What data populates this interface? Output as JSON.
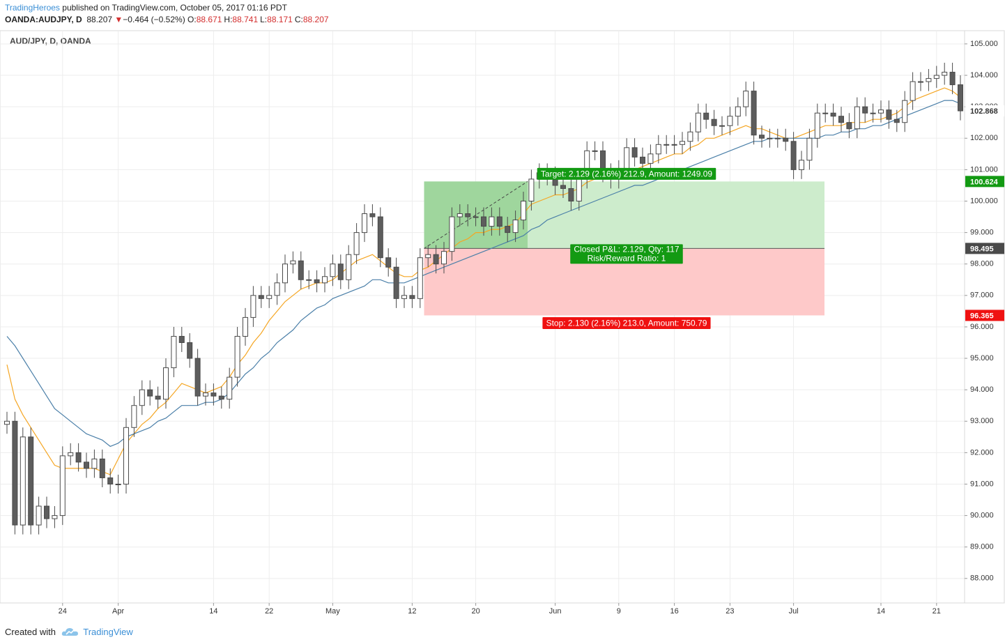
{
  "header": {
    "author": "TradingHeroes",
    "published": "published on TradingView.com, October 05, 2017 01:16 PDT",
    "symbol": "OANDA:AUDJPY, D",
    "price": 88.207,
    "arrow": "▼",
    "change": "−0.464 (−0.52%)",
    "ohlc": [
      {
        "label": "O:",
        "value": 88.671
      },
      {
        "label": "H:",
        "value": 88.741
      },
      {
        "label": "L:",
        "value": 88.171
      },
      {
        "label": "C:",
        "value": 88.207
      }
    ]
  },
  "chart_data": {
    "type": "candlestick",
    "title": "AUD/JPY, D, OANDA",
    "categories": [
      null,
      null,
      null,
      null,
      null,
      null,
      null,
      "24",
      null,
      null,
      null,
      null,
      null,
      null,
      "Apr",
      null,
      null,
      null,
      null,
      null,
      null,
      null,
      null,
      null,
      null,
      null,
      "14",
      null,
      null,
      null,
      null,
      null,
      null,
      "22",
      null,
      null,
      null,
      null,
      null,
      null,
      null,
      "May",
      null,
      null,
      null,
      null,
      null,
      null,
      null,
      null,
      null,
      "12",
      null,
      null,
      null,
      null,
      null,
      null,
      null,
      "20",
      null,
      null,
      null,
      null,
      null,
      null,
      null,
      null,
      null,
      "Jun",
      null,
      null,
      null,
      null,
      null,
      null,
      null,
      "9",
      null,
      null,
      null,
      null,
      null,
      null,
      "16",
      null,
      null,
      null,
      null,
      null,
      null,
      "23",
      null,
      null,
      null,
      null,
      null,
      null,
      null,
      "Jul",
      null,
      null,
      null,
      null,
      null,
      null,
      null,
      null,
      null,
      null,
      "14",
      null,
      null,
      null,
      null,
      null,
      null,
      "21",
      null,
      null,
      null
    ],
    "open": [
      92.9,
      93.0,
      89.7,
      92.5,
      89.7,
      90.3,
      89.9,
      90.0,
      91.9,
      92.0,
      91.7,
      91.5,
      91.8,
      91.2,
      91.0,
      91.0,
      92.8,
      93.5,
      94.0,
      93.8,
      93.7,
      94.7,
      95.7,
      95.5,
      95.0,
      93.8,
      93.9,
      93.8,
      93.7,
      94.4,
      95.7,
      96.3,
      97.0,
      96.9,
      97.0,
      97.4,
      98.0,
      98.1,
      97.5,
      97.5,
      97.4,
      97.6,
      98.0,
      97.5,
      98.3,
      99.0,
      99.6,
      99.5,
      98.2,
      97.9,
      96.9,
      97.0,
      96.9,
      98.2,
      98.3,
      98.0,
      98.4,
      99.5,
      99.6,
      99.5,
      99.5,
      99.2,
      99.5,
      99.2,
      99.0,
      99.4,
      100.0,
      100.7,
      100.9,
      100.8,
      100.5,
      100.4,
      100.0,
      100.7,
      101.6,
      101.6,
      100.9,
      100.7,
      101.0,
      101.7,
      101.4,
      101.2,
      101.5,
      101.8,
      101.8,
      101.8,
      101.9,
      102.2,
      102.8,
      102.6,
      102.4,
      102.4,
      102.7,
      103.0,
      103.5,
      102.1,
      102.0,
      102.0,
      102.0,
      101.9,
      101.0,
      101.3,
      102.0,
      102.8,
      102.8,
      102.7,
      102.5,
      102.3,
      103.0,
      102.8,
      102.8,
      102.9,
      102.6,
      102.5,
      103.2,
      103.8,
      103.8,
      103.9,
      104.0,
      104.1,
      103.7
    ],
    "high": [
      93.3,
      93.3,
      92.8,
      92.8,
      90.6,
      90.6,
      90.3,
      92.2,
      92.3,
      92.3,
      92.0,
      92.1,
      92.1,
      91.5,
      91.3,
      93.1,
      93.8,
      94.3,
      94.3,
      94.1,
      95.0,
      96.0,
      96.0,
      95.8,
      95.3,
      94.2,
      94.2,
      94.1,
      94.7,
      96.0,
      96.6,
      97.3,
      97.3,
      97.3,
      97.7,
      98.3,
      98.4,
      98.4,
      97.8,
      97.8,
      97.9,
      98.3,
      98.3,
      98.6,
      99.3,
      99.9,
      99.9,
      99.8,
      98.5,
      98.2,
      97.3,
      97.3,
      98.5,
      98.6,
      98.6,
      98.7,
      99.8,
      99.9,
      99.9,
      99.8,
      99.8,
      99.8,
      99.8,
      99.5,
      99.7,
      100.3,
      101.0,
      101.2,
      101.2,
      101.1,
      100.8,
      100.7,
      101.0,
      101.9,
      101.9,
      101.9,
      101.2,
      101.3,
      102.0,
      102.0,
      101.7,
      101.8,
      102.1,
      102.1,
      102.1,
      102.2,
      102.5,
      103.1,
      103.1,
      102.9,
      102.7,
      103.0,
      103.3,
      103.8,
      103.8,
      102.4,
      102.3,
      102.3,
      102.3,
      102.2,
      101.6,
      102.3,
      103.1,
      103.1,
      103.1,
      103.0,
      102.8,
      103.3,
      103.3,
      103.1,
      103.2,
      103.2,
      102.9,
      103.5,
      104.1,
      104.1,
      104.2,
      104.3,
      104.4,
      104.4,
      104.0
    ],
    "low": [
      92.6,
      89.4,
      89.4,
      89.4,
      89.4,
      89.6,
      89.6,
      89.7,
      91.6,
      91.4,
      91.2,
      91.2,
      90.9,
      90.7,
      90.7,
      90.7,
      92.5,
      93.2,
      93.5,
      93.4,
      93.4,
      94.4,
      95.2,
      94.7,
      93.5,
      93.5,
      93.5,
      93.4,
      93.4,
      94.1,
      95.4,
      96.0,
      96.6,
      96.6,
      96.7,
      97.1,
      97.7,
      97.2,
      97.2,
      97.1,
      97.1,
      97.3,
      97.2,
      97.2,
      98.0,
      98.7,
      99.2,
      97.9,
      97.6,
      96.6,
      96.6,
      96.6,
      96.6,
      97.9,
      97.7,
      97.7,
      98.1,
      99.2,
      99.2,
      99.2,
      98.9,
      98.9,
      98.9,
      98.7,
      98.7,
      99.1,
      99.7,
      100.4,
      100.5,
      100.2,
      100.1,
      99.7,
      99.7,
      100.4,
      101.3,
      100.6,
      100.4,
      100.4,
      100.7,
      101.1,
      100.9,
      100.9,
      101.2,
      101.5,
      101.5,
      101.5,
      101.6,
      101.9,
      102.3,
      102.1,
      102.1,
      102.1,
      102.4,
      102.7,
      101.8,
      101.7,
      101.7,
      101.7,
      101.6,
      100.7,
      100.7,
      101.0,
      101.7,
      102.5,
      102.4,
      102.2,
      102.0,
      102.0,
      102.5,
      102.5,
      102.5,
      102.3,
      102.2,
      102.2,
      102.9,
      103.5,
      103.5,
      103.6,
      103.7,
      103.4,
      102.57
    ],
    "close": [
      93.0,
      89.7,
      92.5,
      89.7,
      90.3,
      89.9,
      90.0,
      91.9,
      92.0,
      91.7,
      91.5,
      91.8,
      91.2,
      91.0,
      91.0,
      92.8,
      93.5,
      94.0,
      93.8,
      93.7,
      94.7,
      95.7,
      95.5,
      95.0,
      93.8,
      93.9,
      93.8,
      93.7,
      94.4,
      95.7,
      96.3,
      97.0,
      96.9,
      97.0,
      97.4,
      98.0,
      98.1,
      97.5,
      97.5,
      97.4,
      97.6,
      98.0,
      97.5,
      98.3,
      99.0,
      99.6,
      99.5,
      98.2,
      97.9,
      96.9,
      97.0,
      96.9,
      98.2,
      98.3,
      98.0,
      98.4,
      99.5,
      99.6,
      99.5,
      99.5,
      99.2,
      99.5,
      99.2,
      99.0,
      99.4,
      100.0,
      100.7,
      100.9,
      100.8,
      100.5,
      100.4,
      100.0,
      100.7,
      101.6,
      101.6,
      100.9,
      100.7,
      101.0,
      101.7,
      101.4,
      101.2,
      101.5,
      101.8,
      101.8,
      101.8,
      101.9,
      102.2,
      102.8,
      102.6,
      102.4,
      102.4,
      102.7,
      103.0,
      103.5,
      102.1,
      102.0,
      102.0,
      102.0,
      101.9,
      101.0,
      101.3,
      102.0,
      102.8,
      102.8,
      102.7,
      102.5,
      102.3,
      103.0,
      102.8,
      102.8,
      102.9,
      102.6,
      102.5,
      103.2,
      103.8,
      103.8,
      103.9,
      104.0,
      104.1,
      103.7,
      102.87
    ],
    "up_color": "#ffffff",
    "down_color": "#5d5d5d",
    "wick_color": "#4a4a4a",
    "moving_averages": [
      {
        "color": "#f5a623",
        "values": [
          94.8,
          93.7,
          93.2,
          92.8,
          92.4,
          92.0,
          91.6,
          91.5,
          91.5,
          91.5,
          91.5,
          91.5,
          91.4,
          91.3,
          91.8,
          92.3,
          92.6,
          92.9,
          93.1,
          93.4,
          93.6,
          93.9,
          94.2,
          94.1,
          94.0,
          93.9,
          94.0,
          94.1,
          94.4,
          94.8,
          95.1,
          95.5,
          95.8,
          96.2,
          96.5,
          96.8,
          97.0,
          97.2,
          97.3,
          97.4,
          97.4,
          97.5,
          97.7,
          97.9,
          98.1,
          98.2,
          98.3,
          98.1,
          97.9,
          97.7,
          97.6,
          97.6,
          97.8,
          97.9,
          98.1,
          98.3,
          98.5,
          98.7,
          98.8,
          99.0,
          99.0,
          99.1,
          99.1,
          99.2,
          99.3,
          99.6,
          99.9,
          100.0,
          100.1,
          100.2,
          100.2,
          100.3,
          100.4,
          100.6,
          100.7,
          100.8,
          100.8,
          100.9,
          100.9,
          101.0,
          101.1,
          101.2,
          101.3,
          101.4,
          101.5,
          101.5,
          101.7,
          101.8,
          102.0,
          102.0,
          102.1,
          102.2,
          102.3,
          102.4,
          102.3,
          102.3,
          102.2,
          102.1,
          102.0,
          102.0,
          102.1,
          102.2,
          102.3,
          102.4,
          102.4,
          102.4,
          102.5,
          102.5,
          102.5,
          102.6,
          102.6,
          102.7,
          102.8,
          103.0,
          103.2,
          103.3,
          103.4,
          103.5,
          103.6,
          103.5,
          103.3
        ]
      },
      {
        "color": "#4a7fa8",
        "values": [
          95.7,
          95.4,
          95.0,
          94.6,
          94.2,
          93.8,
          93.4,
          93.2,
          93.0,
          92.8,
          92.6,
          92.5,
          92.4,
          92.2,
          92.3,
          92.5,
          92.6,
          92.7,
          92.8,
          93.0,
          93.1,
          93.3,
          93.5,
          93.5,
          93.5,
          93.6,
          93.6,
          93.7,
          93.9,
          94.2,
          94.5,
          94.7,
          95.0,
          95.2,
          95.5,
          95.7,
          95.9,
          96.2,
          96.4,
          96.6,
          96.7,
          96.9,
          97.0,
          97.1,
          97.2,
          97.3,
          97.5,
          97.5,
          97.4,
          97.4,
          97.4,
          97.5,
          97.6,
          97.7,
          97.8,
          97.9,
          98.0,
          98.1,
          98.2,
          98.3,
          98.4,
          98.5,
          98.6,
          98.7,
          98.8,
          98.9,
          99.1,
          99.2,
          99.4,
          99.5,
          99.6,
          99.7,
          99.8,
          99.9,
          100.0,
          100.1,
          100.2,
          100.3,
          100.4,
          100.5,
          100.5,
          100.6,
          100.7,
          100.8,
          100.9,
          101.0,
          101.1,
          101.2,
          101.3,
          101.4,
          101.5,
          101.6,
          101.7,
          101.8,
          101.9,
          101.9,
          102.0,
          102.0,
          102.0,
          102.0,
          102.0,
          102.0,
          102.0,
          102.1,
          102.1,
          102.2,
          102.2,
          102.3,
          102.3,
          102.4,
          102.4,
          102.5,
          102.6,
          102.7,
          102.8,
          102.9,
          103.0,
          103.1,
          103.2,
          103.2,
          103.1
        ]
      }
    ],
    "ylim": [
      87.22,
      105.42
    ],
    "yticks": [
      {
        "value": 88,
        "label": "88.000"
      },
      {
        "value": 89,
        "label": "89.000"
      },
      {
        "value": 90,
        "label": "90.000"
      },
      {
        "value": 91,
        "label": "91.000"
      },
      {
        "value": 92,
        "label": "92.000"
      },
      {
        "value": 93,
        "label": "93.000"
      },
      {
        "value": 94,
        "label": "94.000"
      },
      {
        "value": 95,
        "label": "95.000"
      },
      {
        "value": 96,
        "label": "96.000"
      },
      {
        "value": 97,
        "label": "97.000"
      },
      {
        "value": 98,
        "label": "98.000"
      },
      {
        "value": 99,
        "label": "99.000"
      },
      {
        "value": 100,
        "label": "100.000"
      },
      {
        "value": 101,
        "label": "101.000"
      },
      {
        "value": 102,
        "label": "102.000"
      },
      {
        "value": 103,
        "label": "103.000"
      },
      {
        "value": 104,
        "label": "104.000"
      },
      {
        "value": 105,
        "label": "105.000"
      }
    ],
    "grid": true,
    "last_price": 102.868,
    "position": {
      "entry": 98.495,
      "target": 100.624,
      "stop": 96.365,
      "target_label": "Target: 2.129 (2.16%) 212.9, Amount: 1249.09",
      "closed_label": "Closed P&L: 2.129, Qty: 117",
      "ratio_label": "Risk/Reward Ratio: 1",
      "stop_label": "Stop: 2.130 (2.16%) 213.0, Amount: 750.79",
      "profit_color": "#cdeccc",
      "profit_hit_color": "#9fd69d",
      "loss_color": "#fec9c9",
      "label_profit_color": "#139a13",
      "label_loss_color": "#ef1111"
    }
  },
  "footer": {
    "created": "Created with",
    "brand": "TradingView"
  }
}
